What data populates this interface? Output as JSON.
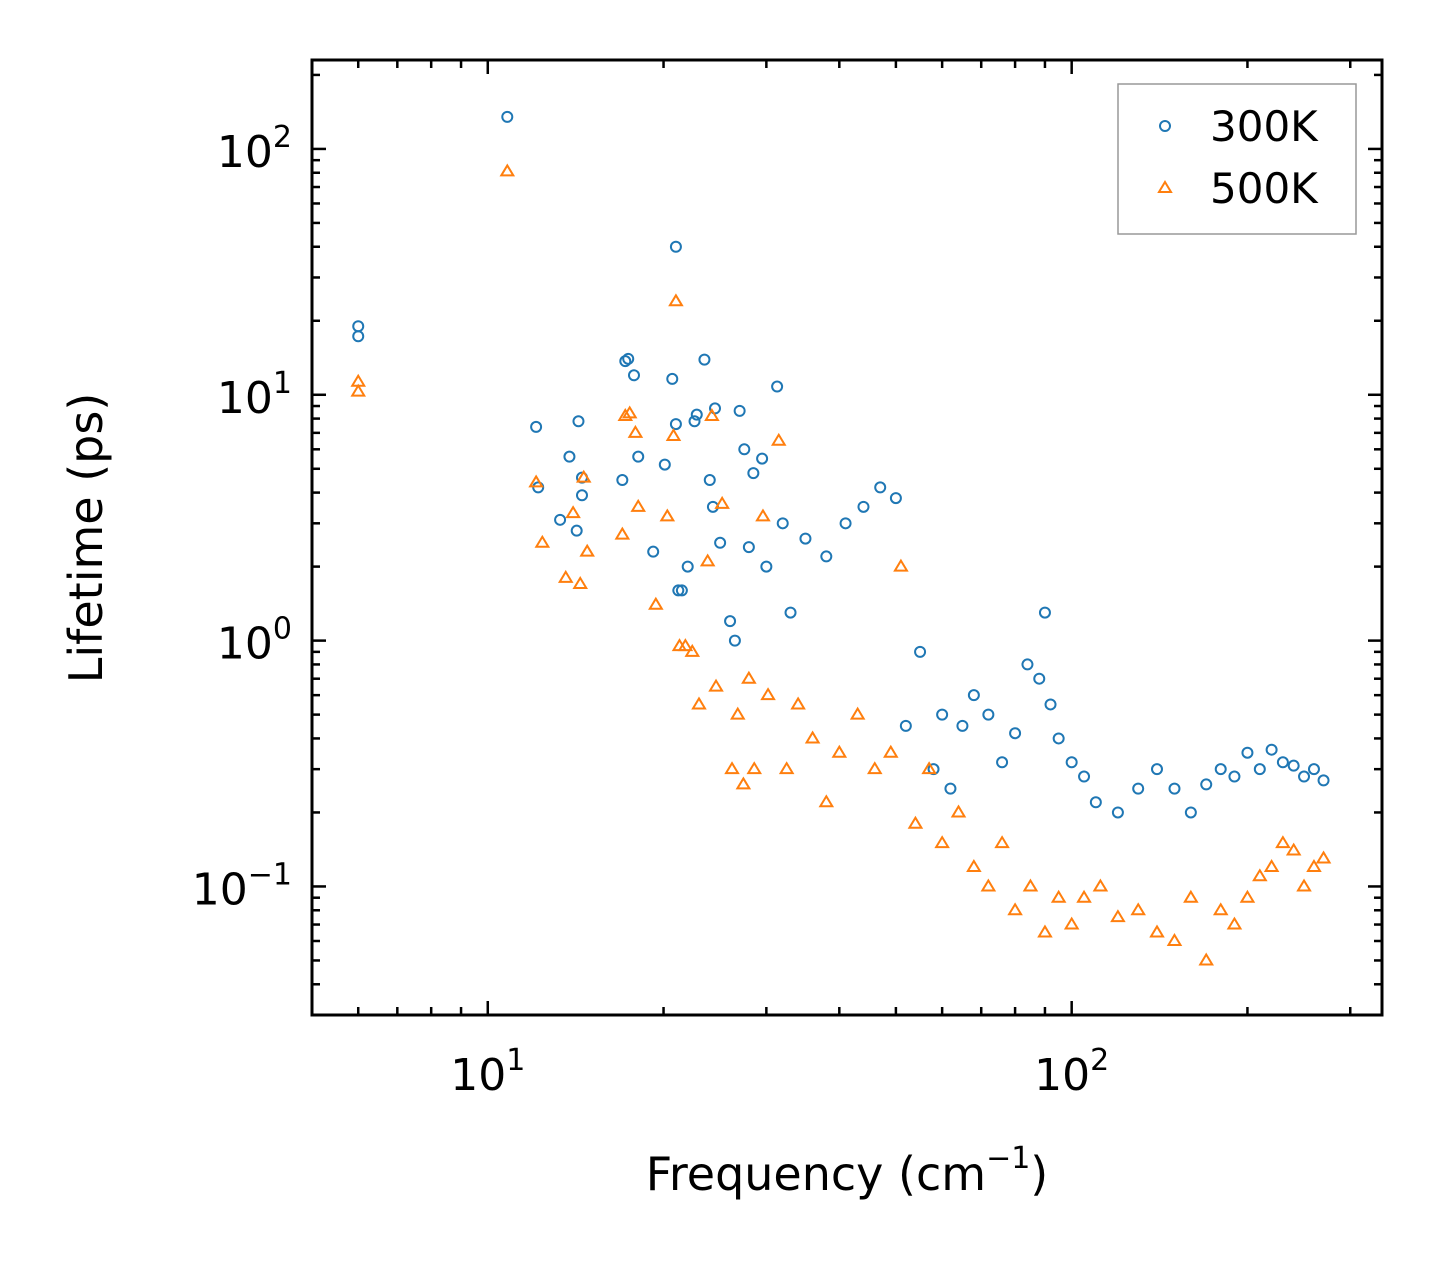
{
  "chart_data": {
    "type": "scatter",
    "title": "",
    "xlabel": "Frequency (cm",
    "xlabel_sup": "−1",
    "xlabel_close": ")",
    "ylabel": "Lifetime (ps)",
    "xscale": "log",
    "yscale": "log",
    "xlim": [
      5,
      340
    ],
    "ylim": [
      0.03,
      230
    ],
    "x_ticks": [
      {
        "value": 10,
        "base": "10",
        "exp": "1"
      },
      {
        "value": 100,
        "base": "10",
        "exp": "2"
      }
    ],
    "y_ticks": [
      {
        "value": 0.1,
        "base": "10",
        "exp": "−1"
      },
      {
        "value": 1,
        "base": "10",
        "exp": "0"
      },
      {
        "value": 10,
        "base": "10",
        "exp": "1"
      },
      {
        "value": 100,
        "base": "10",
        "exp": "2"
      }
    ],
    "legend_position": "top-right",
    "series": [
      {
        "name": "300K",
        "marker": "circle",
        "color": "#1f77b4",
        "x": [
          6.0,
          6.0,
          10.8,
          12.1,
          12.2,
          13.3,
          13.8,
          14.2,
          14.3,
          14.5,
          14.5,
          17.0,
          17.2,
          17.4,
          17.8,
          18.1,
          19.2,
          20.1,
          20.7,
          21.0,
          21.0,
          21.2,
          21.5,
          22.0,
          22.6,
          22.8,
          23.5,
          24.0,
          24.3,
          24.5,
          25.0,
          26.0,
          26.5,
          27.0,
          27.5,
          28.0,
          28.5,
          29.5,
          30.0,
          31.3,
          32.0,
          33.0,
          35.0,
          38.0,
          41.0,
          44.0,
          47.0,
          50.0,
          52.0,
          55.0,
          58.0,
          60.0,
          62.0,
          65.0,
          68.0,
          72.0,
          76.0,
          80.0,
          84.0,
          88.0,
          90.0,
          92.0,
          95.0,
          100.0,
          105.0,
          110.0,
          120.0,
          130.0,
          140.0,
          150.0,
          160.0,
          170.0,
          180.0,
          190.0,
          200.0,
          210.0,
          220.0,
          230.0,
          240.0,
          250.0,
          260.0,
          270.0
        ],
        "y": [
          19.0,
          17.3,
          135.0,
          7.4,
          4.2,
          3.1,
          5.6,
          2.8,
          7.8,
          3.9,
          4.6,
          4.5,
          13.7,
          14.0,
          12.0,
          5.6,
          2.3,
          5.2,
          11.6,
          7.6,
          40.0,
          1.6,
          1.6,
          2.0,
          7.8,
          8.3,
          13.9,
          4.5,
          3.5,
          8.8,
          2.5,
          1.2,
          1.0,
          8.6,
          6.0,
          2.4,
          4.8,
          5.5,
          2.0,
          10.8,
          3.0,
          1.3,
          2.6,
          2.2,
          3.0,
          3.5,
          4.2,
          3.8,
          0.45,
          0.9,
          0.3,
          0.5,
          0.25,
          0.45,
          0.6,
          0.5,
          0.32,
          0.42,
          0.8,
          0.7,
          1.3,
          0.55,
          0.4,
          0.32,
          0.28,
          0.22,
          0.2,
          0.25,
          0.3,
          0.25,
          0.2,
          0.26,
          0.3,
          0.28,
          0.35,
          0.3,
          0.36,
          0.32,
          0.31,
          0.28,
          0.3,
          0.27
        ]
      },
      {
        "name": "500K",
        "marker": "triangle",
        "color": "#ff7f0e",
        "x": [
          6.0,
          6.0,
          10.8,
          12.1,
          12.4,
          13.6,
          14.0,
          14.4,
          14.6,
          14.8,
          17.0,
          17.2,
          17.5,
          17.9,
          18.1,
          19.4,
          20.3,
          20.8,
          21.0,
          21.3,
          21.8,
          22.4,
          23.0,
          23.8,
          24.2,
          24.6,
          25.2,
          26.2,
          26.8,
          27.4,
          28.0,
          28.6,
          29.6,
          30.2,
          31.5,
          32.5,
          34.0,
          36.0,
          38.0,
          40.0,
          43.0,
          46.0,
          49.0,
          51.0,
          54.0,
          57.0,
          60.0,
          64.0,
          68.0,
          72.0,
          76.0,
          80.0,
          85.0,
          90.0,
          95.0,
          100.0,
          105.0,
          112.0,
          120.0,
          130.0,
          140.0,
          150.0,
          160.0,
          170.0,
          180.0,
          190.0,
          200.0,
          210.0,
          220.0,
          230.0,
          240.0,
          250.0,
          260.0,
          270.0
        ],
        "y": [
          11.3,
          10.3,
          81.0,
          4.4,
          2.5,
          1.8,
          3.3,
          1.7,
          4.6,
          2.3,
          2.7,
          8.2,
          8.4,
          7.0,
          3.5,
          1.4,
          3.2,
          6.8,
          24.0,
          0.95,
          0.95,
          0.9,
          0.55,
          2.1,
          8.2,
          0.65,
          3.6,
          0.3,
          0.5,
          0.26,
          0.7,
          0.3,
          3.2,
          0.6,
          6.5,
          0.3,
          0.55,
          0.4,
          0.22,
          0.35,
          0.5,
          0.3,
          0.35,
          2.0,
          0.18,
          0.3,
          0.15,
          0.2,
          0.12,
          0.1,
          0.15,
          0.08,
          0.1,
          0.065,
          0.09,
          0.07,
          0.09,
          0.1,
          0.075,
          0.08,
          0.065,
          0.06,
          0.09,
          0.05,
          0.08,
          0.07,
          0.09,
          0.11,
          0.12,
          0.15,
          0.14,
          0.1,
          0.12,
          0.13
        ]
      }
    ]
  }
}
